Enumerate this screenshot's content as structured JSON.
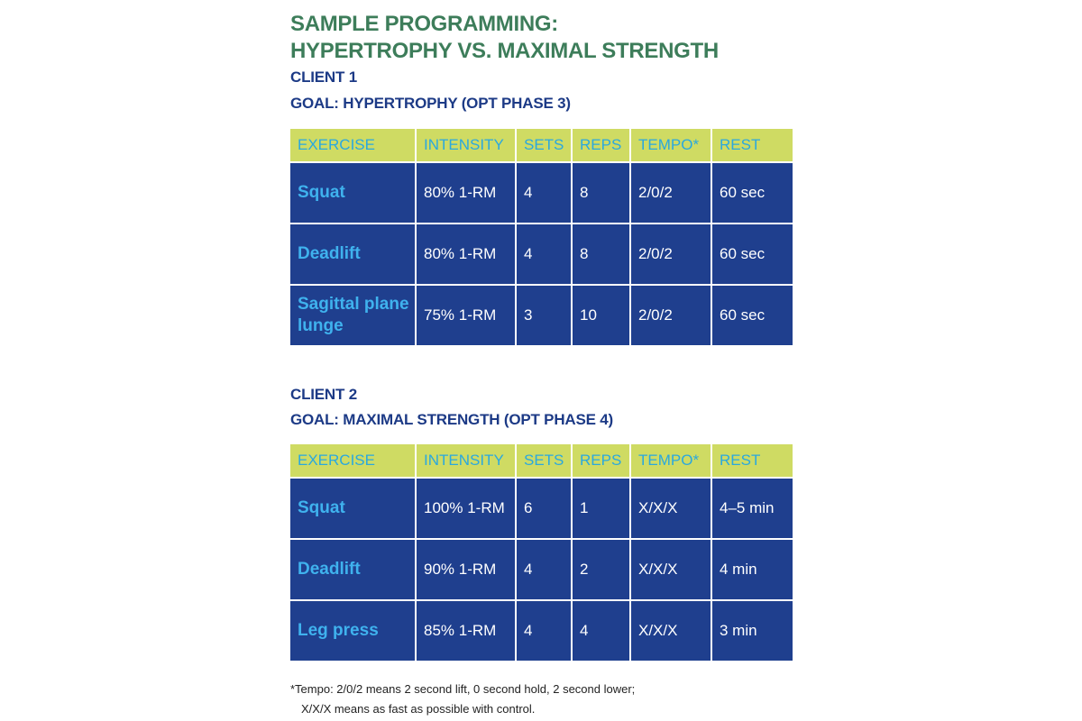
{
  "title": [
    "SAMPLE PROGRAMMING:",
    "HYPERTROPHY VS. MAXIMAL STRENGTH"
  ],
  "clients": [
    {
      "heading": "CLIENT 1",
      "goal": "GOAL: HYPERTROPHY (OPT PHASE 3)",
      "table": {
        "header": [
          "EXERCISE",
          "INTENSITY",
          "SETS",
          "REPS",
          "TEMPO*",
          "REST"
        ],
        "rows": [
          [
            "Squat",
            "80% 1-RM",
            "4",
            "8",
            "2/0/2",
            "60 sec"
          ],
          [
            "Deadlift",
            "80% 1-RM",
            "4",
            "8",
            "2/0/2",
            "60 sec"
          ],
          [
            "Sagittal plane lunge",
            "75% 1-RM",
            "3",
            "10",
            "2/0/2",
            "60 sec"
          ]
        ]
      }
    },
    {
      "heading": "CLIENT 2",
      "goal": "GOAL: MAXIMAL STRENGTH (OPT PHASE 4)",
      "table": {
        "header": [
          "EXERCISE",
          "INTENSITY",
          "SETS",
          "REPS",
          "TEMPO*",
          "REST"
        ],
        "rows": [
          [
            "Squat",
            "100% 1-RM",
            "6",
            "1",
            "X/X/X",
            "4–5 min"
          ],
          [
            "Deadlift",
            "90% 1-RM",
            "4",
            "2",
            "X/X/X",
            "4 min"
          ],
          [
            "Leg press",
            "85% 1-RM",
            "4",
            "4",
            "X/X/X",
            "3 min"
          ]
        ]
      }
    }
  ],
  "footnote": [
    "*Tempo: 2/0/2 means 2 second lift, 0 second hold, 2 second lower;",
    "X/X/X means as fast as possible with control."
  ]
}
